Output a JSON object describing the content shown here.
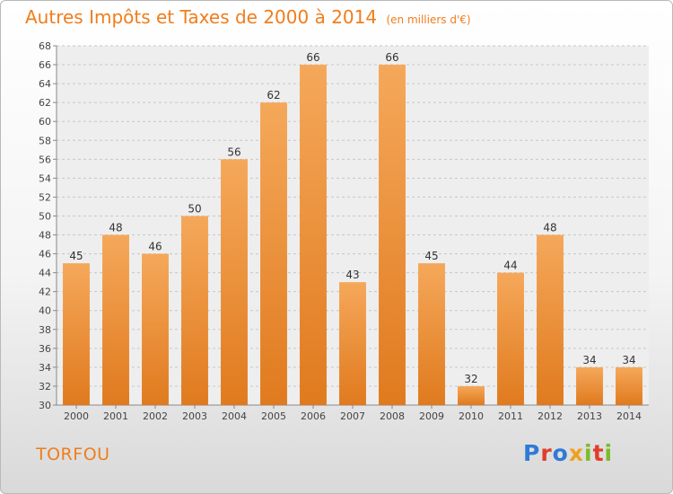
{
  "header": {
    "title": "Autres Impôts et Taxes de 2000 à 2014",
    "subtitle": "(en milliers d'€)"
  },
  "footer": {
    "commune": "TORFOU",
    "logo_text": "Proxiti"
  },
  "colors": {
    "title": "#f07d1c",
    "bar_top": "#f5a85a",
    "bar_bottom": "#e07a1e",
    "logo_letters": [
      "#2f7ad6",
      "#e23d2a",
      "#2f7ad6",
      "#f0a020",
      "#7cbb2a",
      "#e23d2a",
      "#7cbb2a"
    ]
  },
  "chart_data": {
    "type": "bar",
    "title": "Autres Impôts et Taxes de 2000 à 2014",
    "subtitle": "(en milliers d'€)",
    "categories": [
      "2000",
      "2001",
      "2002",
      "2003",
      "2004",
      "2005",
      "2006",
      "2007",
      "2008",
      "2009",
      "2010",
      "2011",
      "2012",
      "2013",
      "2014"
    ],
    "values": [
      45,
      48,
      46,
      50,
      56,
      62,
      66,
      43,
      66,
      45,
      32,
      44,
      48,
      34,
      34
    ],
    "ylim": [
      30,
      68
    ],
    "yticks": [
      "30",
      "32",
      "34",
      "36",
      "38",
      "40",
      "42",
      "44",
      "46",
      "48",
      "50",
      "52",
      "54",
      "56",
      "58",
      "60",
      "62",
      "64",
      "66",
      "68"
    ],
    "grid": true,
    "legend": "none"
  }
}
